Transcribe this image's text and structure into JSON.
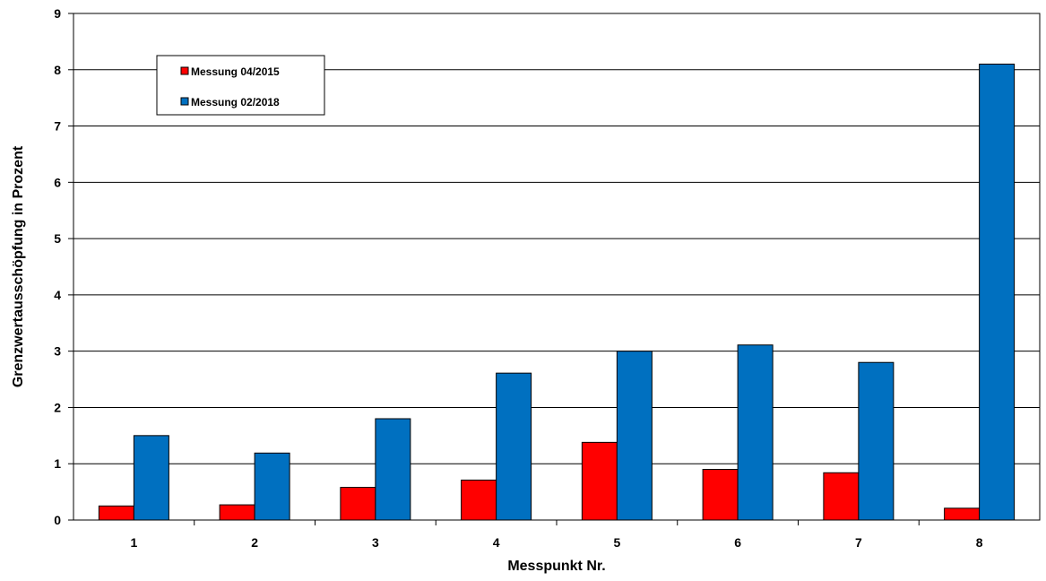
{
  "chart_data": {
    "type": "bar",
    "title": "",
    "xlabel": "Messpunkt Nr.",
    "ylabel": "Grenzwertausschöpfung  in Prozent",
    "categories": [
      "1",
      "2",
      "3",
      "4",
      "5",
      "6",
      "7",
      "8"
    ],
    "ylim": [
      0,
      9
    ],
    "yticks": [
      "0",
      "1",
      "2",
      "3",
      "4",
      "5",
      "6",
      "7",
      "8",
      "9"
    ],
    "grid": "horizontal",
    "legend_position": "top-left",
    "series": [
      {
        "name": "Messung 04/2015",
        "color": "#ff0000",
        "values": [
          0.25,
          0.27,
          0.58,
          0.71,
          1.38,
          0.9,
          0.84,
          0.21
        ]
      },
      {
        "name": "Messung 02/2018",
        "color": "#0070c0",
        "values": [
          1.5,
          1.19,
          1.8,
          2.61,
          3.0,
          3.11,
          2.8,
          8.1
        ]
      }
    ]
  }
}
